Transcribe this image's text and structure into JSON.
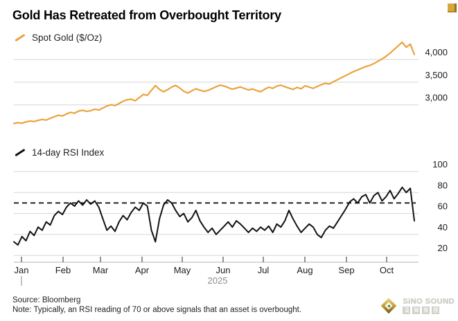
{
  "header": {
    "title": "Gold Has Retreated from Overbought Territory"
  },
  "colors": {
    "gold_line": "#E9A23B",
    "rsi_line": "#111111",
    "dashed_threshold": "#000000",
    "gridline": "#d6d6d6",
    "axis_line": "#b3b3b3",
    "axis_tick": "#4d4d4d",
    "label_text": "#1a1a1a",
    "year_text": "#8c8c8c"
  },
  "chart_data": [
    {
      "id": "spot-gold",
      "type": "line",
      "legend": "Spot Gold ($/Oz)",
      "color": "#E9A23B",
      "ylabel_side": "right",
      "y_ticks": [
        3000,
        3500,
        4000
      ],
      "y_tick_labels": [
        "3,000",
        "3,500",
        "4,000"
      ],
      "ylim": [
        2350,
        4470
      ],
      "x_range": [
        "Jan 2025",
        "late Oct 2025"
      ],
      "grid": true,
      "values": [
        2590,
        2608,
        2595,
        2625,
        2645,
        2632,
        2660,
        2678,
        2665,
        2705,
        2740,
        2772,
        2755,
        2800,
        2835,
        2815,
        2865,
        2880,
        2858,
        2872,
        2905,
        2885,
        2930,
        2975,
        3005,
        2985,
        3030,
        3080,
        3115,
        3125,
        3090,
        3160,
        3230,
        3210,
        3320,
        3425,
        3340,
        3290,
        3335,
        3390,
        3430,
        3370,
        3300,
        3260,
        3310,
        3355,
        3325,
        3295,
        3320,
        3360,
        3400,
        3435,
        3415,
        3380,
        3345,
        3370,
        3395,
        3360,
        3330,
        3350,
        3315,
        3290,
        3345,
        3390,
        3365,
        3415,
        3435,
        3400,
        3370,
        3340,
        3385,
        3355,
        3420,
        3390,
        3365,
        3405,
        3445,
        3475,
        3460,
        3510,
        3555,
        3600,
        3645,
        3690,
        3735,
        3770,
        3810,
        3845,
        3870,
        3910,
        3960,
        4010,
        4070,
        4140,
        4220,
        4300,
        4380,
        4270,
        4340,
        4110
      ]
    },
    {
      "id": "rsi",
      "type": "line",
      "legend": "14-day RSI Index",
      "color": "#111111",
      "ylabel_side": "right",
      "y_ticks": [
        20,
        40,
        60,
        80,
        100
      ],
      "y_tick_labels": [
        "20",
        "40",
        "60",
        "80",
        "100"
      ],
      "ylim": [
        15,
        105
      ],
      "overbought_level": 70,
      "grid": true,
      "values": [
        33,
        30,
        38,
        34,
        43,
        39,
        47,
        44,
        52,
        49,
        58,
        62,
        59,
        66,
        70,
        67,
        72,
        68,
        73,
        69,
        72,
        66,
        55,
        44,
        48,
        43,
        52,
        58,
        54,
        61,
        66,
        63,
        70,
        67,
        44,
        33,
        55,
        68,
        73,
        70,
        63,
        57,
        60,
        52,
        56,
        63,
        53,
        47,
        42,
        46,
        40,
        44,
        48,
        52,
        47,
        53,
        50,
        46,
        42,
        46,
        43,
        47,
        44,
        48,
        42,
        50,
        47,
        53,
        63,
        55,
        48,
        42,
        46,
        50,
        47,
        40,
        37,
        44,
        48,
        46,
        52,
        58,
        64,
        71,
        74,
        70,
        76,
        78,
        70,
        77,
        80,
        72,
        76,
        82,
        74,
        79,
        85,
        80,
        84,
        53
      ]
    }
  ],
  "x_axis": {
    "months": [
      "Jan",
      "Feb",
      "Mar",
      "Apr",
      "May",
      "Jun",
      "Jul",
      "Aug",
      "Sep",
      "Oct"
    ],
    "year": "2025"
  },
  "footer": {
    "source": "Source: Bloomberg",
    "note": "Note: Typically, an RSI reading of 70 or above signals that an asset is overbought."
  },
  "logo": {
    "name": "SiNO SOUND",
    "cn": "漢聲集團"
  }
}
